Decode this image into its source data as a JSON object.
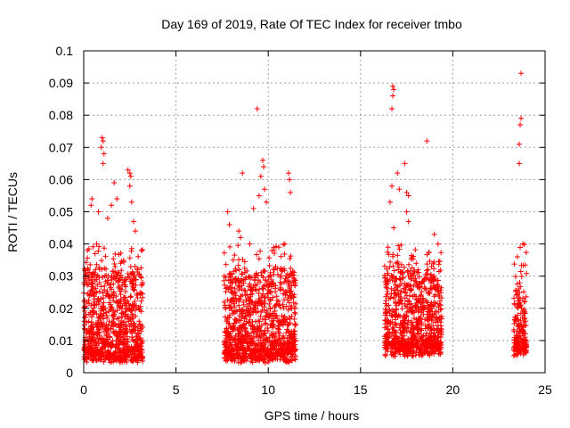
{
  "chart_data": {
    "type": "scatter",
    "title": "Day 169 of 2019, Rate Of TEC Index for receiver tmbo",
    "xlabel": "GPS time / hours",
    "ylabel": "ROTI / TECUs",
    "xlim": [
      0,
      25
    ],
    "ylim": [
      0,
      0.1
    ],
    "x_ticks": [
      0,
      5,
      10,
      15,
      20,
      25
    ],
    "x_tick_labels": [
      "0",
      "5",
      "10",
      "15",
      "20",
      "25"
    ],
    "y_ticks": [
      0,
      0.01,
      0.02,
      0.03,
      0.04,
      0.05,
      0.06,
      0.07,
      0.08,
      0.09,
      0.1
    ],
    "y_tick_labels": [
      "0",
      "0.01",
      "0.02",
      "0.03",
      "0.04",
      "0.05",
      "0.06",
      "0.07",
      "0.08",
      "0.09",
      "0.1"
    ],
    "grid": true,
    "marker": "+",
    "colors": {
      "series": "#ff0000",
      "grid": "#a0a0a0",
      "axes": "#000000"
    },
    "series": [
      {
        "clusters": [
          {
            "start": 0.0,
            "end": 3.2,
            "min": 0.003,
            "typical_max": 0.03
          },
          {
            "start": 7.6,
            "end": 11.5,
            "min": 0.003,
            "typical_max": 0.03
          },
          {
            "start": 16.3,
            "end": 19.4,
            "min": 0.005,
            "typical_max": 0.03
          },
          {
            "start": 23.3,
            "end": 24.0,
            "min": 0.005,
            "typical_max": 0.025
          }
        ],
        "peaks": [
          {
            "x": 0.2,
            "y": 0.038
          },
          {
            "x": 0.4,
            "y": 0.052
          },
          {
            "x": 0.45,
            "y": 0.054
          },
          {
            "x": 0.7,
            "y": 0.04
          },
          {
            "x": 0.8,
            "y": 0.05
          },
          {
            "x": 0.95,
            "y": 0.07
          },
          {
            "x": 1.0,
            "y": 0.073
          },
          {
            "x": 1.05,
            "y": 0.072
          },
          {
            "x": 1.1,
            "y": 0.068
          },
          {
            "x": 1.05,
            "y": 0.065
          },
          {
            "x": 1.3,
            "y": 0.048
          },
          {
            "x": 1.5,
            "y": 0.052
          },
          {
            "x": 1.65,
            "y": 0.059
          },
          {
            "x": 1.8,
            "y": 0.054
          },
          {
            "x": 2.0,
            "y": 0.034
          },
          {
            "x": 2.4,
            "y": 0.063
          },
          {
            "x": 2.5,
            "y": 0.062
          },
          {
            "x": 2.55,
            "y": 0.061
          },
          {
            "x": 2.5,
            "y": 0.058
          },
          {
            "x": 2.6,
            "y": 0.053
          },
          {
            "x": 2.7,
            "y": 0.047
          },
          {
            "x": 2.8,
            "y": 0.044
          },
          {
            "x": 7.8,
            "y": 0.05
          },
          {
            "x": 7.9,
            "y": 0.046
          },
          {
            "x": 8.1,
            "y": 0.035
          },
          {
            "x": 8.4,
            "y": 0.044
          },
          {
            "x": 8.5,
            "y": 0.042
          },
          {
            "x": 8.6,
            "y": 0.062
          },
          {
            "x": 9.0,
            "y": 0.04
          },
          {
            "x": 9.2,
            "y": 0.051
          },
          {
            "x": 9.4,
            "y": 0.082
          },
          {
            "x": 9.5,
            "y": 0.055
          },
          {
            "x": 9.6,
            "y": 0.061
          },
          {
            "x": 9.7,
            "y": 0.066
          },
          {
            "x": 9.75,
            "y": 0.064
          },
          {
            "x": 9.8,
            "y": 0.057
          },
          {
            "x": 9.9,
            "y": 0.053
          },
          {
            "x": 10.2,
            "y": 0.038
          },
          {
            "x": 10.4,
            "y": 0.033
          },
          {
            "x": 10.9,
            "y": 0.04
          },
          {
            "x": 11.1,
            "y": 0.062
          },
          {
            "x": 11.15,
            "y": 0.06
          },
          {
            "x": 11.2,
            "y": 0.056
          },
          {
            "x": 16.6,
            "y": 0.053
          },
          {
            "x": 16.7,
            "y": 0.058
          },
          {
            "x": 16.75,
            "y": 0.089
          },
          {
            "x": 16.8,
            "y": 0.088
          },
          {
            "x": 16.75,
            "y": 0.086
          },
          {
            "x": 16.7,
            "y": 0.082
          },
          {
            "x": 16.8,
            "y": 0.045
          },
          {
            "x": 17.0,
            "y": 0.062
          },
          {
            "x": 17.1,
            "y": 0.057
          },
          {
            "x": 17.4,
            "y": 0.065
          },
          {
            "x": 17.5,
            "y": 0.056
          },
          {
            "x": 17.6,
            "y": 0.055
          },
          {
            "x": 17.5,
            "y": 0.05
          },
          {
            "x": 17.6,
            "y": 0.047
          },
          {
            "x": 18.6,
            "y": 0.072
          },
          {
            "x": 19.0,
            "y": 0.043
          },
          {
            "x": 19.2,
            "y": 0.04
          },
          {
            "x": 23.5,
            "y": 0.036
          },
          {
            "x": 23.6,
            "y": 0.065
          },
          {
            "x": 23.6,
            "y": 0.071
          },
          {
            "x": 23.65,
            "y": 0.077
          },
          {
            "x": 23.7,
            "y": 0.079
          },
          {
            "x": 23.7,
            "y": 0.093
          },
          {
            "x": 23.8,
            "y": 0.04
          }
        ]
      }
    ]
  }
}
